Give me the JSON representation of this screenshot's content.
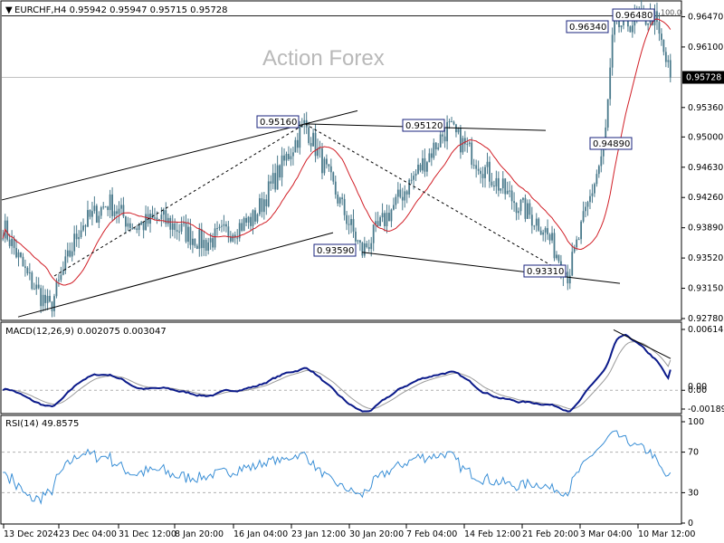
{
  "header": {
    "symbol_line": "EURCHF,H4  0.95942  0.95947  0.95715  0.95728",
    "watermark": "Action Forex"
  },
  "price_panel": {
    "y_ticks": [
      "0.96470",
      "0.96100",
      "0.95360",
      "0.95000",
      "0.94630",
      "0.94260",
      "0.93890",
      "0.93520",
      "0.93150",
      "0.92780"
    ],
    "current_price": "0.95728",
    "fib_label": "100.0",
    "annotations": [
      "0.95160",
      "0.95120",
      "0.93590",
      "0.93310",
      "0.94890",
      "0.96340",
      "0.96480"
    ]
  },
  "macd_panel": {
    "title": "MACD(12,26,9) 0.002075 0.003047",
    "y_ticks": [
      "0.006143",
      "0.00",
      "-0.001896"
    ],
    "zero_label": "0.00"
  },
  "rsi_panel": {
    "title": "RSI(14) 49.8575",
    "y_ticks": [
      "100",
      "70",
      "30",
      "0"
    ]
  },
  "x_axis": {
    "labels": [
      "13 Dec 2024",
      "23 Dec 04:00",
      "31 Dec 12:00",
      "8 Jan 20:00",
      "16 Jan 04:00",
      "23 Jan 12:00",
      "30 Jan 20:00",
      "7 Feb 04:00",
      "14 Feb 12:00",
      "21 Feb 20:00",
      "3 Mar 04:00",
      "10 Mar 12:00"
    ]
  },
  "colors": {
    "candle": "#4a7a8c",
    "ma": "#d11e26",
    "macd": "#0b1a8a",
    "signal": "#9a9a9a",
    "rsi": "#3a8fd6",
    "trendline": "#000000"
  },
  "chart_data": {
    "type": "line",
    "title": "EURCHF,H4",
    "ohlc_last": {
      "open": 0.95942,
      "high": 0.95947,
      "low": 0.95715,
      "close": 0.95728
    },
    "price_anchors": [
      {
        "x": "13 Dec 2024",
        "y": 0.939
      },
      {
        "x": "17 Dec",
        "y": 0.933
      },
      {
        "x": "19 Dec",
        "y": 0.929
      },
      {
        "x": "23 Dec 04:00",
        "y": 0.939
      },
      {
        "x": "26 Dec",
        "y": 0.942
      },
      {
        "x": "31 Dec 12:00",
        "y": 0.939
      },
      {
        "x": "3 Jan",
        "y": 0.94
      },
      {
        "x": "8 Jan 20:00",
        "y": 0.937
      },
      {
        "x": "16 Jan 04:00",
        "y": 0.94
      },
      {
        "x": "23 Jan 12:00",
        "y": 0.9516
      },
      {
        "x": "30 Jan 20:00",
        "y": 0.9359
      },
      {
        "x": "7 Feb 04:00",
        "y": 0.9512
      },
      {
        "x": "14 Feb 12:00",
        "y": 0.943
      },
      {
        "x": "21 Feb 20:00",
        "y": 0.939
      },
      {
        "x": "26 Feb",
        "y": 0.9331
      },
      {
        "x": "3 Mar 04:00",
        "y": 0.9489
      },
      {
        "x": "5 Mar",
        "y": 0.9634
      },
      {
        "x": "10 Mar 12:00",
        "y": 0.9648
      },
      {
        "x": "last",
        "y": 0.95728
      }
    ],
    "ylim": [
      0.9278,
      0.9663
    ],
    "macd": {
      "value": 0.002075,
      "signal": 0.003047,
      "ylim": [
        -0.001896,
        0.006143
      ]
    },
    "rsi": {
      "value": 49.8575,
      "levels": [
        70,
        30
      ],
      "ylim": [
        0,
        100
      ]
    }
  }
}
